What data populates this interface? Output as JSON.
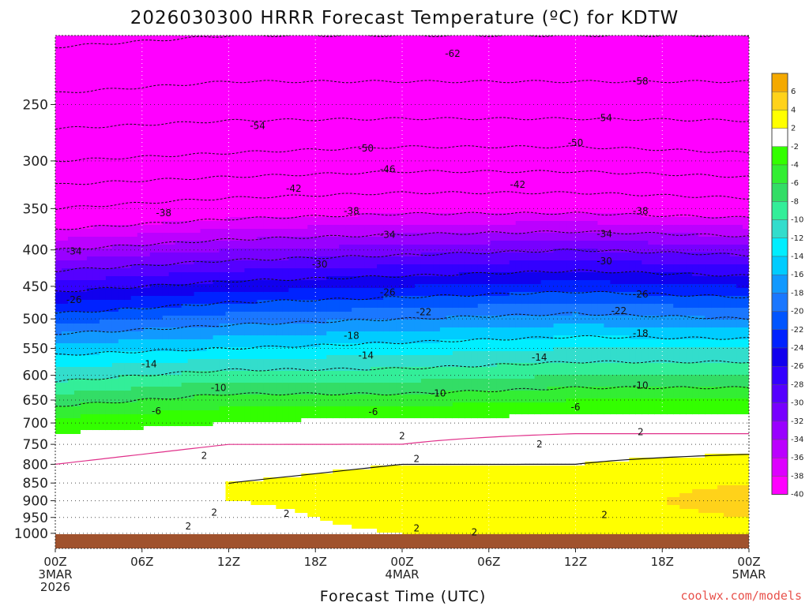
{
  "chart_data": {
    "type": "heatmap",
    "title": "2026030300 HRRR Forecast Temperature (ºC) for KDTW",
    "xlabel": "Forecast Time (UTC)",
    "ylabel": "",
    "credit": "coolwx.com/models",
    "y_axis": {
      "scale": "log-pressure",
      "range": [
        1050,
        200
      ],
      "ticks": [
        "250",
        "300",
        "350",
        "400",
        "450",
        "500",
        "550",
        "600",
        "650",
        "700",
        "750",
        "800",
        "850",
        "900",
        "950",
        "1000"
      ],
      "tick_values": [
        250,
        300,
        350,
        400,
        450,
        500,
        550,
        600,
        650,
        700,
        750,
        800,
        850,
        900,
        950,
        1000
      ]
    },
    "x_axis": {
      "range_hours": [
        0,
        48
      ],
      "tick_hours": [
        0,
        6,
        12,
        18,
        24,
        30,
        36,
        42,
        48
      ],
      "ticks": [
        {
          "line1": "00Z",
          "line2": "3MAR",
          "line3": "2026"
        },
        {
          "line1": "06Z",
          "line2": "",
          "line3": ""
        },
        {
          "line1": "12Z",
          "line2": "",
          "line3": ""
        },
        {
          "line1": "18Z",
          "line2": "",
          "line3": ""
        },
        {
          "line1": "00Z",
          "line2": "4MAR",
          "line3": ""
        },
        {
          "line1": "06Z",
          "line2": "",
          "line3": ""
        },
        {
          "line1": "12Z",
          "line2": "",
          "line3": ""
        },
        {
          "line1": "18Z",
          "line2": "",
          "line3": ""
        },
        {
          "line1": "00Z",
          "line2": "5MAR",
          "line3": ""
        }
      ]
    },
    "colorbar": {
      "levels": [
        "6",
        "4",
        "2",
        "-2",
        "-4",
        "-6",
        "-8",
        "-10",
        "-12",
        "-14",
        "-16",
        "-18",
        "-20",
        "-22",
        "-24",
        "-26",
        "-28",
        "-30",
        "-32",
        "-34",
        "-36",
        "-38",
        "-40"
      ],
      "colors": [
        "#f4a900",
        "#ffd21a",
        "#ffff00",
        "#ffffff",
        "#33ff00",
        "#33ee33",
        "#33dd66",
        "#33ee99",
        "#33ddcc",
        "#00eeff",
        "#00ccff",
        "#1199ff",
        "#1a77ff",
        "#0055ff",
        "#0022ff",
        "#1100ee",
        "#3300ff",
        "#5500ff",
        "#7700ff",
        "#9900ff",
        "#bb00ff",
        "#dd00ff",
        "#ff00ff"
      ]
    },
    "temperature_profiles_C": {
      "pressure_levels": [
        200,
        250,
        300,
        350,
        400,
        450,
        500,
        550,
        600,
        650,
        700,
        750,
        800,
        850,
        900,
        950,
        1000
      ],
      "hours": [
        0,
        12,
        24,
        36,
        48
      ],
      "values": [
        [
          -63,
          -62,
          -62,
          -62,
          -62
        ],
        [
          -57,
          -56,
          -56,
          -56,
          -56
        ],
        [
          -50,
          -49,
          -48,
          -48,
          -49
        ],
        [
          -42,
          -40,
          -39,
          -39,
          -40
        ],
        [
          -34,
          -32,
          -31,
          -30,
          -31
        ],
        [
          -27,
          -25,
          -24,
          -23,
          -24
        ],
        [
          -21,
          -19,
          -18,
          -17,
          -18
        ],
        [
          -15,
          -14,
          -13,
          -12,
          -12
        ],
        [
          -11,
          -9,
          -9,
          -8,
          -8
        ],
        [
          -7,
          -5,
          -5,
          -4,
          -4
        ],
        [
          -3,
          -2,
          -1,
          -1,
          -1
        ],
        [
          -1,
          0,
          0,
          1,
          1
        ],
        [
          0,
          1,
          2,
          2,
          3
        ],
        [
          1,
          2,
          3,
          3,
          4
        ],
        [
          1,
          2,
          3,
          3,
          5
        ],
        [
          0,
          1,
          3,
          3,
          4
        ],
        [
          -2,
          1,
          2,
          2,
          3
        ]
      ]
    },
    "contour_labels": [
      {
        "text": "-62",
        "hour": 27.5,
        "p": 212
      },
      {
        "text": "-58",
        "hour": 40.5,
        "p": 232
      },
      {
        "text": "-54",
        "hour": 14,
        "p": 268
      },
      {
        "text": "-54",
        "hour": 38,
        "p": 261
      },
      {
        "text": "-50",
        "hour": 21.5,
        "p": 288
      },
      {
        "text": "-50",
        "hour": 36,
        "p": 283
      },
      {
        "text": "-46",
        "hour": 23,
        "p": 308
      },
      {
        "text": "-42",
        "hour": 16.5,
        "p": 328
      },
      {
        "text": "-42",
        "hour": 32,
        "p": 324
      },
      {
        "text": "-38",
        "hour": 7.5,
        "p": 355
      },
      {
        "text": "-38",
        "hour": 20.5,
        "p": 353
      },
      {
        "text": "-38",
        "hour": 40.5,
        "p": 353
      },
      {
        "text": "-34",
        "hour": 1.3,
        "p": 402
      },
      {
        "text": "-34",
        "hour": 23,
        "p": 381
      },
      {
        "text": "-34",
        "hour": 38,
        "p": 380
      },
      {
        "text": "-30",
        "hour": 18.3,
        "p": 419
      },
      {
        "text": "-30",
        "hour": 38,
        "p": 415
      },
      {
        "text": "-26",
        "hour": 1.3,
        "p": 470
      },
      {
        "text": "-26",
        "hour": 23,
        "p": 459
      },
      {
        "text": "-26",
        "hour": 40.5,
        "p": 462
      },
      {
        "text": "-22",
        "hour": 25.5,
        "p": 489
      },
      {
        "text": "-22",
        "hour": 39,
        "p": 487
      },
      {
        "text": "-18",
        "hour": 20.5,
        "p": 528
      },
      {
        "text": "-18",
        "hour": 40.5,
        "p": 524
      },
      {
        "text": "-14",
        "hour": 21.5,
        "p": 563
      },
      {
        "text": "-14",
        "hour": 33.5,
        "p": 566
      },
      {
        "text": "-14",
        "hour": 6.5,
        "p": 579
      },
      {
        "text": "-10",
        "hour": 11.3,
        "p": 625
      },
      {
        "text": "-10",
        "hour": 26.5,
        "p": 636
      },
      {
        "text": "-10",
        "hour": 40.5,
        "p": 620
      },
      {
        "text": "-6",
        "hour": 7,
        "p": 674
      },
      {
        "text": "-6",
        "hour": 22,
        "p": 675
      },
      {
        "text": "-6",
        "hour": 36,
        "p": 665
      },
      {
        "text": "2",
        "hour": 24,
        "p": 730
      },
      {
        "text": "2",
        "hour": 40.5,
        "p": 721
      },
      {
        "text": "2",
        "hour": 10.3,
        "p": 778
      },
      {
        "text": "2",
        "hour": 25,
        "p": 786
      },
      {
        "text": "2",
        "hour": 33.5,
        "p": 750
      },
      {
        "text": "2",
        "hour": 11,
        "p": 935
      },
      {
        "text": "2",
        "hour": 16,
        "p": 939
      },
      {
        "text": "2",
        "hour": 9.2,
        "p": 978
      },
      {
        "text": "2",
        "hour": 25,
        "p": 984
      },
      {
        "text": "2",
        "hour": 29,
        "p": 996
      },
      {
        "text": "2",
        "hour": 38,
        "p": 942
      }
    ]
  }
}
